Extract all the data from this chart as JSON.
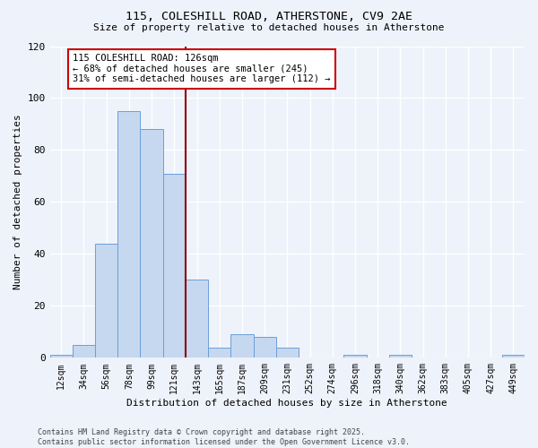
{
  "title_line1": "115, COLESHILL ROAD, ATHERSTONE, CV9 2AE",
  "title_line2": "Size of property relative to detached houses in Atherstone",
  "xlabel": "Distribution of detached houses by size in Atherstone",
  "ylabel": "Number of detached properties",
  "bar_labels": [
    "12sqm",
    "34sqm",
    "56sqm",
    "78sqm",
    "99sqm",
    "121sqm",
    "143sqm",
    "165sqm",
    "187sqm",
    "209sqm",
    "231sqm",
    "252sqm",
    "274sqm",
    "296sqm",
    "318sqm",
    "340sqm",
    "362sqm",
    "383sqm",
    "405sqm",
    "427sqm",
    "449sqm"
  ],
  "bar_values": [
    1,
    5,
    44,
    95,
    88,
    71,
    30,
    4,
    9,
    8,
    4,
    0,
    0,
    1,
    0,
    1,
    0,
    0,
    0,
    0,
    1
  ],
  "bar_color": "#c5d8f0",
  "bar_edge_color": "#6a9fd8",
  "vline_x": 5.5,
  "vline_color": "#8b0000",
  "annotation_text": "115 COLESHILL ROAD: 126sqm\n← 68% of detached houses are smaller (245)\n31% of semi-detached houses are larger (112) →",
  "annotation_box_color": "#ffffff",
  "annotation_box_edge": "#cc0000",
  "ylim": [
    0,
    120
  ],
  "yticks": [
    0,
    20,
    40,
    60,
    80,
    100,
    120
  ],
  "background_color": "#eef2fa",
  "grid_color": "#ffffff",
  "footer_text": "Contains HM Land Registry data © Crown copyright and database right 2025.\nContains public sector information licensed under the Open Government Licence v3.0."
}
